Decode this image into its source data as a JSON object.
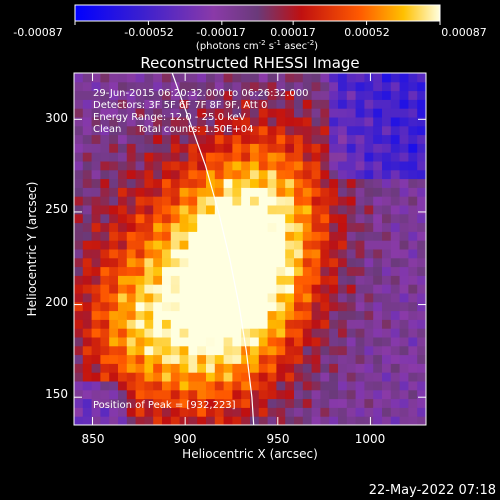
{
  "colorbar": {
    "min": -0.00087,
    "max": 0.00087,
    "tick_labels": [
      "-0.00087",
      "-0.00052",
      "-0.00017",
      "0.00017",
      "0.00052",
      "0.00087"
    ],
    "units_prefix": "(photons cm",
    "units_exp1": "-2",
    "units_mid": " s",
    "units_exp2": "-1",
    "units_mid2": " asec",
    "units_exp3": "-2",
    "units_suffix": ")"
  },
  "info_lines": [
    "29-Jun-2015 06:20:32.000 to 06:26:32.000",
    "Detectors: 3F 5F 6F 7F 8F 9F, Att 0",
    "Energy Range: 12.0 - 25.0 keV",
    "Clean     Total counts: 1.50E+04"
  ],
  "peak_text": "Position of Peak = [932,223]",
  "footer_date": "22-May-2022 07:18",
  "colors": {
    "limb": "#ffffff",
    "positive": "#ff4400",
    "negative": "#5c2d8c"
  },
  "chart_data": {
    "type": "heatmap",
    "title": "Reconstructed RHESSI Image",
    "xlabel": "Heliocentric X (arcsec)",
    "ylabel": "Heliocentric Y (arcsec)",
    "xlim": [
      840,
      1030
    ],
    "ylim": [
      135,
      325
    ],
    "xticks": [
      850,
      900,
      950,
      1000
    ],
    "yticks": [
      150,
      200,
      250,
      300
    ],
    "peak": [
      932,
      223
    ],
    "limb_curve": [
      [
        893,
        325
      ],
      [
        902,
        300
      ],
      [
        911,
        275
      ],
      [
        918,
        250
      ],
      [
        924,
        225
      ],
      [
        929,
        200
      ],
      [
        933,
        175
      ],
      [
        936,
        150
      ],
      [
        937,
        135
      ]
    ]
  }
}
